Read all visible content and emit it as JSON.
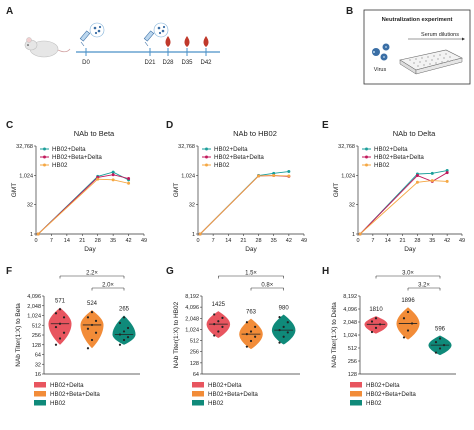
{
  "panel_labels": [
    "A",
    "B",
    "C",
    "D",
    "E",
    "F",
    "G",
    "H"
  ],
  "timeline": {
    "days": [
      "D0",
      "D21",
      "D28",
      "D35",
      "D42"
    ],
    "colors": {
      "axis": "#4a90c8",
      "drop": "#c0392b",
      "syringe": "#3a6ea5",
      "mouse": "#d9d9d9"
    }
  },
  "neutralization": {
    "title": "Neutralization experiment",
    "serum_label": "Serum dilutions",
    "virus_label": "Virus",
    "virus_color": "#3a6ea5"
  },
  "colors": {
    "HB02+Delta": "#1a9e9a",
    "HB02+Beta+Delta": "#c2185b",
    "HB02": "#f5a742",
    "violin_HB02+Delta": "#e8555f",
    "violin_HB02+Beta+Delta": "#f28c38",
    "violin_HB02": "#0f8a7a"
  },
  "chart_data": [
    {
      "type": "line",
      "panel": "C",
      "title": "NAb to Beta",
      "xlabel": "Day",
      "ylabel": "GMT",
      "x_ticks": [
        0,
        7,
        14,
        21,
        28,
        35,
        42,
        49
      ],
      "y_ticks": [
        1,
        32,
        1024,
        32768
      ],
      "y_tick_labels": [
        "1",
        "32",
        "1,024",
        "32,768"
      ],
      "y_scale": "log2",
      "xlim": [
        0,
        49
      ],
      "ylim": [
        1,
        32768
      ],
      "legend": "top-left",
      "series": [
        {
          "name": "HB02+Delta",
          "x": [
            1,
            28,
            35,
            42
          ],
          "y": [
            1,
            900,
            1500,
            600
          ]
        },
        {
          "name": "HB02+Beta+Delta",
          "x": [
            1,
            28,
            35,
            42
          ],
          "y": [
            1,
            800,
            1100,
            700
          ]
        },
        {
          "name": "HB02",
          "x": [
            1,
            28,
            35,
            42
          ],
          "y": [
            1,
            650,
            600,
            400
          ]
        }
      ]
    },
    {
      "type": "line",
      "panel": "D",
      "title": "NAb to HB02",
      "xlabel": "Day",
      "ylabel": "GMT",
      "x_ticks": [
        0,
        7,
        14,
        21,
        28,
        35,
        42,
        49
      ],
      "y_ticks": [
        1,
        32,
        1024,
        32768
      ],
      "y_tick_labels": [
        "1",
        "32",
        "1,024",
        "32,768"
      ],
      "y_scale": "log2",
      "xlim": [
        0,
        49
      ],
      "ylim": [
        1,
        32768
      ],
      "legend": "top-left",
      "series": [
        {
          "name": "HB02+Delta",
          "x": [
            1,
            28,
            35,
            42
          ],
          "y": [
            1,
            1000,
            1300,
            1600
          ]
        },
        {
          "name": "HB02+Beta+Delta",
          "x": [
            1,
            28,
            35,
            42
          ],
          "y": [
            1,
            950,
            1000,
            900
          ]
        },
        {
          "name": "HB02",
          "x": [
            1,
            28,
            35,
            42
          ],
          "y": [
            1,
            950,
            1000,
            950
          ]
        }
      ]
    },
    {
      "type": "line",
      "panel": "E",
      "title": "NAb to Delta",
      "xlabel": "Day",
      "ylabel": "GMT",
      "x_ticks": [
        0,
        7,
        14,
        21,
        28,
        35,
        42,
        49
      ],
      "y_ticks": [
        1,
        32,
        1024,
        32768
      ],
      "y_tick_labels": [
        "1",
        "32",
        "1,024",
        "32,768"
      ],
      "y_scale": "log2",
      "xlim": [
        0,
        49
      ],
      "ylim": [
        1,
        32768
      ],
      "legend": "top-left",
      "series": [
        {
          "name": "HB02+Delta",
          "x": [
            1,
            28,
            35,
            42
          ],
          "y": [
            1,
            1200,
            1300,
            1800
          ]
        },
        {
          "name": "HB02+Beta+Delta",
          "x": [
            1,
            28,
            35,
            42
          ],
          "y": [
            1,
            1000,
            500,
            1400
          ]
        },
        {
          "name": "HB02",
          "x": [
            1,
            28,
            35,
            42
          ],
          "y": [
            1,
            450,
            550,
            500
          ]
        }
      ]
    },
    {
      "type": "violin",
      "panel": "F",
      "ylabel": "NAb Titer(1:X) to Beta",
      "y_scale": "log2",
      "y_ticks": [
        16,
        32,
        64,
        128,
        256,
        512,
        1024,
        2048,
        4096
      ],
      "y_tick_labels": [
        "16",
        "32",
        "64",
        "128",
        "256",
        "512",
        "1,024",
        "2,048",
        "4,096"
      ],
      "ylim": [
        16,
        4096
      ],
      "groups": [
        "HB02+Delta",
        "HB02+Beta+Delta",
        "HB02"
      ],
      "gmt_labels": [
        "571",
        "524",
        "265"
      ],
      "medians": [
        571,
        524,
        265
      ],
      "ranges": [
        [
          128,
          1800
        ],
        [
          100,
          1500
        ],
        [
          128,
          1024
        ]
      ],
      "points": [
        [
          128,
          200,
          300,
          450,
          571,
          900,
          1200,
          1600
        ],
        [
          100,
          180,
          300,
          400,
          524,
          700,
          900,
          1300
        ],
        [
          128,
          180,
          220,
          265,
          330,
          420,
          600,
          900
        ]
      ],
      "comparisons": [
        {
          "from": 0,
          "to": 2,
          "label": "2.2×"
        },
        {
          "from": 1,
          "to": 2,
          "label": "2.0×"
        }
      ],
      "legend": "bottom"
    },
    {
      "type": "violin",
      "panel": "G",
      "ylabel": "NAb Titer(1:X) to HB02",
      "y_scale": "log2",
      "y_ticks": [
        64,
        128,
        256,
        512,
        1024,
        2048,
        4096,
        8192
      ],
      "y_tick_labels": [
        "64",
        "128",
        "256",
        "512",
        "1,024",
        "2,048",
        "4,096",
        "8,192"
      ],
      "ylim": [
        64,
        8192
      ],
      "groups": [
        "HB02+Delta",
        "HB02+Beta+Delta",
        "HB02"
      ],
      "gmt_labels": [
        "1425",
        "763",
        "980"
      ],
      "medians": [
        1425,
        763,
        980
      ],
      "ranges": [
        [
          600,
          3200
        ],
        [
          300,
          2000
        ],
        [
          400,
          2600
        ]
      ],
      "points": [
        [
          700,
          900,
          1200,
          1425,
          1700,
          2100,
          2600
        ],
        [
          350,
          500,
          650,
          763,
          900,
          1200,
          1600
        ],
        [
          450,
          650,
          850,
          980,
          1200,
          1600,
          2200
        ]
      ],
      "comparisons": [
        {
          "from": 0,
          "to": 2,
          "label": "1.5×"
        },
        {
          "from": 1,
          "to": 2,
          "label": "0.8×"
        }
      ],
      "legend": "bottom"
    },
    {
      "type": "violin",
      "panel": "H",
      "ylabel": "NAb Titer(1:X) to Delta",
      "y_scale": "log2",
      "y_ticks": [
        128,
        256,
        512,
        1024,
        2048,
        4096,
        8192
      ],
      "y_tick_labels": [
        "128",
        "256",
        "512",
        "1,024",
        "2,048",
        "4,096",
        "8,192"
      ],
      "ylim": [
        128,
        8192
      ],
      "groups": [
        "HB02+Delta",
        "HB02+Beta+Delta",
        "HB02"
      ],
      "gmt_labels": [
        "1810",
        "1896",
        "596"
      ],
      "medians": [
        1810,
        1896,
        596
      ],
      "ranges": [
        [
          1100,
          2800
        ],
        [
          800,
          4500
        ],
        [
          350,
          1000
        ]
      ],
      "points": [
        [
          1200,
          1500,
          1810,
          2100,
          2500
        ],
        [
          900,
          1300,
          1896,
          2500,
          3500
        ],
        [
          400,
          500,
          596,
          700,
          850
        ]
      ],
      "comparisons": [
        {
          "from": 0,
          "to": 2,
          "label": "3.0×"
        },
        {
          "from": 1,
          "to": 2,
          "label": "3.2×"
        }
      ],
      "legend": "bottom"
    }
  ]
}
